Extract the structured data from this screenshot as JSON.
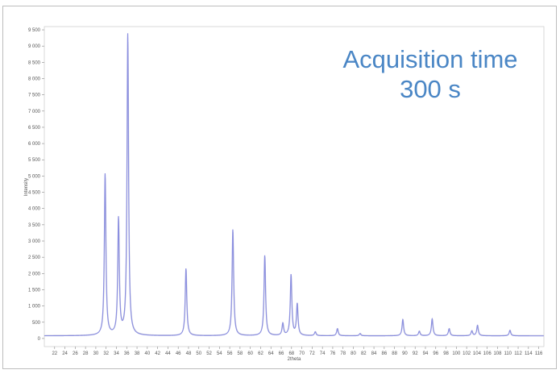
{
  "chart_data": {
    "type": "line",
    "title": "",
    "xlabel": "2theta",
    "ylabel": "Intensity",
    "xlim": [
      20,
      117
    ],
    "ylim": [
      -250,
      9600
    ],
    "grid": false,
    "legend": "none",
    "annotation": [
      "Acquisition time",
      "300 s"
    ],
    "x_ticks": [
      22,
      24,
      26,
      28,
      30,
      32,
      34,
      36,
      38,
      40,
      42,
      44,
      46,
      48,
      50,
      52,
      54,
      56,
      58,
      60,
      62,
      64,
      66,
      68,
      70,
      72,
      74,
      76,
      78,
      80,
      82,
      84,
      86,
      88,
      90,
      92,
      94,
      96,
      98,
      100,
      102,
      104,
      106,
      108,
      110,
      112,
      114,
      116
    ],
    "y_ticks": [
      0,
      500,
      1000,
      1500,
      2000,
      2500,
      3000,
      3500,
      4000,
      4500,
      5000,
      5500,
      6000,
      6500,
      7000,
      7500,
      8000,
      8500,
      9000,
      9500
    ],
    "y_tick_labels": [
      "0",
      "500",
      "1 000",
      "1 500",
      "2 000",
      "2 500",
      "3 000",
      "3 500",
      "4 000",
      "4 500",
      "5 000",
      "5 500",
      "6 000",
      "6 500",
      "7 000",
      "7 500",
      "8 000",
      "8 500",
      "9 000",
      "9 500"
    ],
    "series": [
      {
        "color": "#8b8fe0",
        "baseline": 80,
        "peaks": [
          {
            "x": 31.8,
            "y": 5050
          },
          {
            "x": 34.4,
            "y": 3650
          },
          {
            "x": 36.2,
            "y": 9350
          },
          {
            "x": 47.5,
            "y": 2150
          },
          {
            "x": 56.6,
            "y": 3350
          },
          {
            "x": 62.8,
            "y": 2550
          },
          {
            "x": 66.3,
            "y": 450
          },
          {
            "x": 67.9,
            "y": 1950
          },
          {
            "x": 69.1,
            "y": 1050
          },
          {
            "x": 72.6,
            "y": 200
          },
          {
            "x": 76.9,
            "y": 300
          },
          {
            "x": 81.3,
            "y": 150
          },
          {
            "x": 89.6,
            "y": 580
          },
          {
            "x": 92.8,
            "y": 220
          },
          {
            "x": 95.3,
            "y": 600
          },
          {
            "x": 98.6,
            "y": 300
          },
          {
            "x": 103.0,
            "y": 230
          },
          {
            "x": 104.1,
            "y": 400
          },
          {
            "x": 110.4,
            "y": 250
          }
        ]
      }
    ]
  }
}
